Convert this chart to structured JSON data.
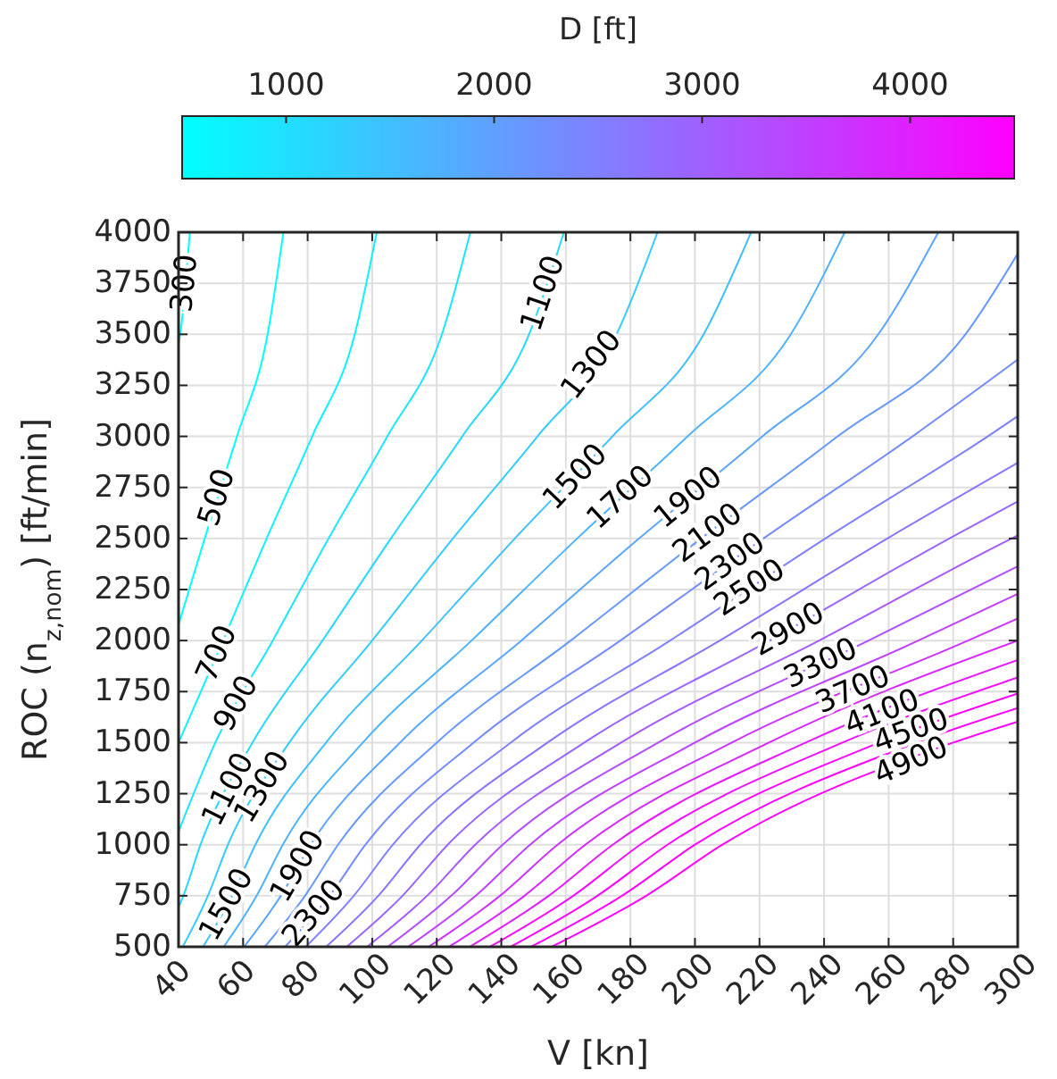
{
  "chart_data": {
    "type": "line",
    "xlabel": "V [kn]",
    "ylabel": "ROC (n$_{z,nom}$) [ft/min]",
    "clabel": "D [ft]",
    "clim": [
      500,
      4500
    ],
    "cticks": [
      1000,
      2000,
      3000,
      4000
    ],
    "xlim": [
      40,
      300
    ],
    "xticks": [
      40,
      60,
      80,
      100,
      120,
      140,
      160,
      180,
      200,
      220,
      240,
      260,
      280,
      300
    ],
    "ylim": [
      500,
      4000
    ],
    "yticks": [
      500,
      750,
      1000,
      1250,
      1500,
      1750,
      2000,
      2250,
      2500,
      2750,
      3000,
      3250,
      3500,
      3750,
      4000
    ],
    "grid": true,
    "series": [
      {
        "color": "#00ffff",
        "x": [
          40,
          40.5,
          43.5
        ],
        "values": [
          3455,
          3500,
          4000
        ]
      },
      {
        "color": "#00ffff",
        "x": [
          40,
          48.1,
          58.1,
          67.6,
          72.5
        ],
        "values": [
          2078,
          2500,
          3000,
          3500,
          4000
        ]
      },
      {
        "color": "#0df2ff",
        "x": [
          40,
          53.8,
          67.3,
          81.4,
          94.6,
          101.4
        ],
        "values": [
          1500,
          2000,
          2500,
          3000,
          3500,
          4000
        ]
      },
      {
        "color": "#1ae6ff",
        "x": [
          40,
          51.4,
          69.2,
          86.5,
          104.7,
          121.6,
          130.4
        ],
        "values": [
          1065,
          1500,
          2000,
          2500,
          3000,
          3500,
          4000
        ]
      },
      {
        "color": "#26d9ff",
        "x": [
          40,
          41.5,
          46.8,
          62.9,
          84.6,
          105.8,
          127.9,
          148.6,
          159.4
        ],
        "values": [
          693,
          750,
          1000,
          1500,
          2000,
          2500,
          3000,
          3500,
          4000
        ]
      },
      {
        "color": "#33ccff",
        "x": [
          41.3,
          49.1,
          55.3,
          74.3,
          100,
          125,
          151.2,
          175.7,
          188.4
        ],
        "values": [
          500,
          750,
          1000,
          1500,
          2000,
          2500,
          3000,
          3500,
          4000
        ],
        "name": null
      },
      {
        "color": "#40bfff",
        "x": [
          47.6,
          56.6,
          63.8,
          85.7,
          115.4,
          144.2,
          174.4,
          202.7,
          217.4
        ],
        "values": [
          500,
          750,
          1000,
          1500,
          2000,
          2500,
          3000,
          3500,
          4000
        ]
      },
      {
        "color": "#4db3ff",
        "x": [
          54,
          64.2,
          72.3,
          97.1,
          130.8,
          163.5,
          197.7,
          229.7,
          246.4
        ],
        "values": [
          500,
          750,
          1000,
          1500,
          2000,
          2500,
          3000,
          3500,
          4000
        ]
      },
      {
        "color": "#59a6ff",
        "x": [
          60.3,
          71.7,
          80.9,
          108.6,
          146.2,
          182.7,
          220.9,
          256.8,
          275.4
        ],
        "values": [
          500,
          750,
          1000,
          1500,
          2000,
          2500,
          3000,
          3500,
          4000
        ]
      },
      {
        "color": "#6699ff",
        "x": [
          66.7,
          79.2,
          89.4,
          120,
          161.5,
          201.9,
          244.2,
          283.8,
          300
        ],
        "values": [
          500,
          750,
          1000,
          1500,
          2000,
          2500,
          3000,
          3500,
          3895
        ]
      },
      {
        "color": "#738cff",
        "x": [
          73,
          86.8,
          97.9,
          131.4,
          176.9,
          221.2,
          267.4,
          300
        ],
        "values": [
          500,
          750,
          1000,
          1500,
          2000,
          2500,
          3000,
          3376
        ]
      },
      {
        "color": "#8080ff",
        "x": [
          79.4,
          94.3,
          106.4,
          142.9,
          192.3,
          240.4,
          290.7,
          300
        ],
        "values": [
          500,
          750,
          1000,
          1500,
          2000,
          2500,
          3000,
          3099
        ]
      },
      {
        "color": "#8c73ff",
        "x": [
          85.7,
          101.9,
          114.9,
          154.3,
          207.7,
          259.6,
          300
        ],
        "values": [
          500,
          750,
          1000,
          1500,
          2000,
          2500,
          2871
        ]
      },
      {
        "color": "#9966ff",
        "x": [
          92.1,
          109.4,
          123.4,
          165.7,
          223.1,
          278.8,
          300
        ],
        "values": [
          500,
          750,
          1000,
          1500,
          2000,
          2500,
          2682
        ]
      },
      {
        "color": "#a659ff",
        "x": [
          98.4,
          117,
          131.9,
          177.1,
          238.5,
          298.1,
          300
        ],
        "values": [
          500,
          750,
          1000,
          1500,
          2000,
          2500,
          2515
        ]
      },
      {
        "color": "#b34dff",
        "x": [
          104.8,
          124.5,
          140.4,
          188.6,
          253.8,
          300
        ],
        "values": [
          500,
          750,
          1000,
          1500,
          2000,
          2364
        ]
      },
      {
        "color": "#bf40ff",
        "x": [
          111.1,
          132.1,
          148.9,
          200,
          269.2,
          300
        ],
        "values": [
          500,
          750,
          1000,
          1500,
          2000,
          2229
        ]
      },
      {
        "color": "#cc33ff",
        "x": [
          117.5,
          139.6,
          157.4,
          211.4,
          284.6,
          300
        ],
        "values": [
          500,
          750,
          1000,
          1500,
          2000,
          2108
        ]
      },
      {
        "color": "#d926ff",
        "x": [
          123.8,
          147.2,
          166,
          222.9,
          300
        ],
        "values": [
          500,
          750,
          1000,
          1500,
          2000
        ]
      },
      {
        "color": "#e61aff",
        "x": [
          130.2,
          154.7,
          174.5,
          234.3,
          300
        ],
        "values": [
          500,
          750,
          1000,
          1500,
          1905
        ]
      },
      {
        "color": "#f20dff",
        "x": [
          136.5,
          162.3,
          183,
          245.7,
          300
        ],
        "values": [
          500,
          750,
          1000,
          1500,
          1819
        ]
      },
      {
        "color": "#ff00ff",
        "x": [
          142.9,
          169.8,
          191.5,
          257.1,
          300
        ],
        "values": [
          500,
          750,
          1000,
          1500,
          1741
        ]
      },
      {
        "color": "#ff00ff",
        "x": [
          149.2,
          177.4,
          200,
          268.6,
          300
        ],
        "values": [
          500,
          750,
          1000,
          1500,
          1669
        ]
      },
      {
        "color": "#ff00ff",
        "x": [
          155.6,
          184.9,
          208.5,
          280,
          300
        ],
        "values": [
          500,
          750,
          1000,
          1500,
          1603
        ]
      }
    ],
    "annotations": [
      {
        "text": "300",
        "x": 42,
        "y": 3750
      },
      {
        "text": "500",
        "x": 52,
        "y": 2700
      },
      {
        "text": "1100",
        "x": 153,
        "y": 3700
      },
      {
        "text": "1300",
        "x": 168,
        "y": 3350
      },
      {
        "text": "1500",
        "x": 163,
        "y": 2800
      },
      {
        "text": "1700",
        "x": 177,
        "y": 2700
      },
      {
        "text": "1900",
        "x": 198,
        "y": 2700
      },
      {
        "text": "2100",
        "x": 204,
        "y": 2525
      },
      {
        "text": "2300",
        "x": 211,
        "y": 2385
      },
      {
        "text": "2500",
        "x": 217,
        "y": 2257
      },
      {
        "text": "2900",
        "x": 229,
        "y": 2053
      },
      {
        "text": "3300",
        "x": 239,
        "y": 1886
      },
      {
        "text": "3700",
        "x": 249,
        "y": 1757
      },
      {
        "text": "4100",
        "x": 258,
        "y": 1646
      },
      {
        "text": "4500",
        "x": 267,
        "y": 1556
      },
      {
        "text": "4900",
        "x": 267,
        "y": 1409
      },
      {
        "text": "700",
        "x": 52,
        "y": 1935
      },
      {
        "text": "900",
        "x": 58,
        "y": 1691
      },
      {
        "text": "1100",
        "x": 55.5,
        "y": 1270
      },
      {
        "text": "1300",
        "x": 66,
        "y": 1282
      },
      {
        "text": "1500",
        "x": 55,
        "y": 706
      },
      {
        "text": "1900",
        "x": 77,
        "y": 894
      },
      {
        "text": "2300",
        "x": 82,
        "y": 663
      }
    ]
  }
}
